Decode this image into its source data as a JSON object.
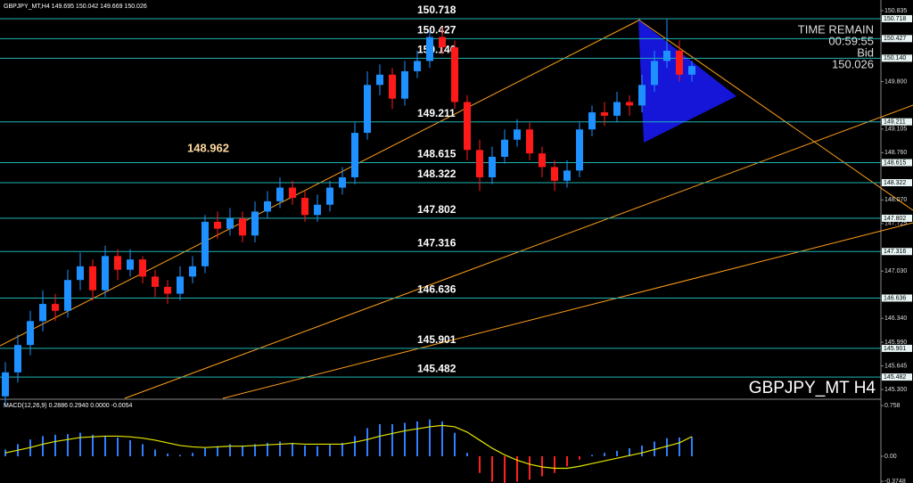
{
  "chart_data": {
    "type": "candlestick",
    "header": "GBPJPY_MT,H4  149.695 150.042 149.669 150.026",
    "symbol_label": "GBPJPY_MT H4",
    "info": {
      "time_title": "TIME REMAIN",
      "time": "00:59:55",
      "bid_title": "Bid",
      "bid": "150.026"
    },
    "annotation": "148.962",
    "up_color": "#1e90ff",
    "down_color": "#ff1a1a",
    "level_color": "#1fb5b5",
    "ylim": [
      145.171,
      150.991
    ],
    "yticks": [
      150.835,
      {
        "value": 149.8,
        "label": "149.800"
      },
      149.105,
      {
        "value": 148.76,
        "label": "148.760"
      },
      {
        "value": 148.07,
        "label": "148.070"
      },
      147.725,
      {
        "value": 147.03,
        "label": "147.030"
      },
      {
        "value": 146.34,
        "label": "146.340"
      },
      {
        "value": 145.99,
        "label": "145.990"
      },
      145.645,
      {
        "value": 145.3,
        "label": "145.300"
      }
    ],
    "levels": [
      150.718,
      150.427,
      {
        "value": 150.14,
        "label": "150.140"
      },
      149.211,
      148.615,
      148.322,
      147.802,
      147.316,
      146.636,
      145.901,
      145.482
    ],
    "candles": [
      [
        145.2,
        145.7,
        145.05,
        145.55
      ],
      [
        145.55,
        146.1,
        145.4,
        145.95
      ],
      [
        145.95,
        146.45,
        145.8,
        146.3
      ],
      [
        146.3,
        146.75,
        146.15,
        146.55
      ],
      [
        146.55,
        146.7,
        146.3,
        146.45
      ],
      [
        146.45,
        147.05,
        146.35,
        146.9
      ],
      [
        146.9,
        147.3,
        146.75,
        147.1
      ],
      [
        147.1,
        147.2,
        146.6,
        146.75
      ],
      [
        146.75,
        147.4,
        146.65,
        147.25
      ],
      [
        147.25,
        147.35,
        146.9,
        147.05
      ],
      [
        147.05,
        147.35,
        146.95,
        147.2
      ],
      [
        147.2,
        147.25,
        146.85,
        146.95
      ],
      [
        146.95,
        147.05,
        146.65,
        146.8
      ],
      [
        146.8,
        146.9,
        146.55,
        146.7
      ],
      [
        146.7,
        147.1,
        146.6,
        146.95
      ],
      [
        146.95,
        147.25,
        146.85,
        147.1
      ],
      [
        147.1,
        147.85,
        147.0,
        147.75
      ],
      [
        147.75,
        147.9,
        147.5,
        147.65
      ],
      [
        147.65,
        147.95,
        147.55,
        147.8
      ],
      [
        147.8,
        147.9,
        147.45,
        147.55
      ],
      [
        147.55,
        148.05,
        147.45,
        147.9
      ],
      [
        147.9,
        148.2,
        147.8,
        148.05
      ],
      [
        148.05,
        148.4,
        147.95,
        148.25
      ],
      [
        148.25,
        148.35,
        148.0,
        148.1
      ],
      [
        148.1,
        148.2,
        147.75,
        147.85
      ],
      [
        147.85,
        148.15,
        147.75,
        148.0
      ],
      [
        148.0,
        148.35,
        147.9,
        148.25
      ],
      [
        148.25,
        148.55,
        148.15,
        148.4
      ],
      [
        148.4,
        149.2,
        148.3,
        149.05
      ],
      [
        149.05,
        149.95,
        148.95,
        149.75
      ],
      [
        149.75,
        150.05,
        149.6,
        149.9
      ],
      [
        149.9,
        150.0,
        149.4,
        149.55
      ],
      [
        149.55,
        150.1,
        149.45,
        149.95
      ],
      [
        149.95,
        150.25,
        149.85,
        150.1
      ],
      [
        150.1,
        150.55,
        150.0,
        150.45
      ],
      [
        150.45,
        150.6,
        150.2,
        150.3
      ],
      [
        150.3,
        150.4,
        149.4,
        149.5
      ],
      [
        149.5,
        149.6,
        148.65,
        148.8
      ],
      [
        148.8,
        148.95,
        148.2,
        148.4
      ],
      [
        148.4,
        148.85,
        148.3,
        148.7
      ],
      [
        148.7,
        149.1,
        148.6,
        148.95
      ],
      [
        148.95,
        149.25,
        148.85,
        149.1
      ],
      [
        149.1,
        149.2,
        148.65,
        148.75
      ],
      [
        148.75,
        148.85,
        148.4,
        148.55
      ],
      [
        148.55,
        148.65,
        148.2,
        148.35
      ],
      [
        148.35,
        148.65,
        148.25,
        148.5
      ],
      [
        148.5,
        149.2,
        148.4,
        149.1
      ],
      [
        149.1,
        149.45,
        149.0,
        149.35
      ],
      [
        149.35,
        149.5,
        149.15,
        149.3
      ],
      [
        149.3,
        149.65,
        149.2,
        149.5
      ],
      [
        149.5,
        149.6,
        149.3,
        149.45
      ],
      [
        149.45,
        149.9,
        149.35,
        149.75
      ],
      [
        149.75,
        150.25,
        149.65,
        150.1
      ],
      [
        150.1,
        150.72,
        150.0,
        150.25
      ],
      [
        150.25,
        150.4,
        149.8,
        149.9
      ],
      [
        149.9,
        150.1,
        149.8,
        150.026
      ]
    ],
    "macd": {
      "header": "MACD(12,26,9) 0.2886 0.2940 0.0000 -0.0054",
      "ylim": [
        -0.4,
        0.825
      ],
      "yticks": [
        0.758,
        {
          "value": 0,
          "label": "0.00"
        },
        -0.3748
      ],
      "hist_color": "#2f7fff",
      "neg_color": "#ff2020",
      "signal_color": "#e6e600",
      "hist": [
        0.1,
        0.18,
        0.25,
        0.3,
        0.32,
        0.33,
        0.35,
        0.32,
        0.3,
        0.28,
        0.24,
        0.18,
        0.1,
        0.04,
        0.02,
        0.05,
        0.12,
        0.15,
        0.18,
        0.16,
        0.18,
        0.2,
        0.22,
        0.2,
        0.16,
        0.15,
        0.17,
        0.2,
        0.3,
        0.42,
        0.48,
        0.48,
        0.5,
        0.52,
        0.55,
        0.52,
        0.35,
        0.05,
        -0.25,
        -0.38,
        -0.4,
        -0.38,
        -0.35,
        -0.3,
        -0.25,
        -0.15,
        -0.05,
        0.02,
        0.05,
        0.08,
        0.12,
        0.16,
        0.22,
        0.27,
        0.28,
        0.2886
      ],
      "signal": [
        0.05,
        0.09,
        0.13,
        0.18,
        0.22,
        0.25,
        0.28,
        0.29,
        0.3,
        0.3,
        0.29,
        0.27,
        0.24,
        0.2,
        0.16,
        0.14,
        0.13,
        0.14,
        0.15,
        0.15,
        0.16,
        0.17,
        0.18,
        0.19,
        0.18,
        0.18,
        0.18,
        0.18,
        0.21,
        0.25,
        0.3,
        0.34,
        0.38,
        0.41,
        0.44,
        0.46,
        0.44,
        0.36,
        0.24,
        0.12,
        0.02,
        -0.06,
        -0.12,
        -0.16,
        -0.18,
        -0.18,
        -0.15,
        -0.11,
        -0.07,
        -0.03,
        0.01,
        0.05,
        0.1,
        0.15,
        0.2,
        0.294
      ]
    }
  }
}
